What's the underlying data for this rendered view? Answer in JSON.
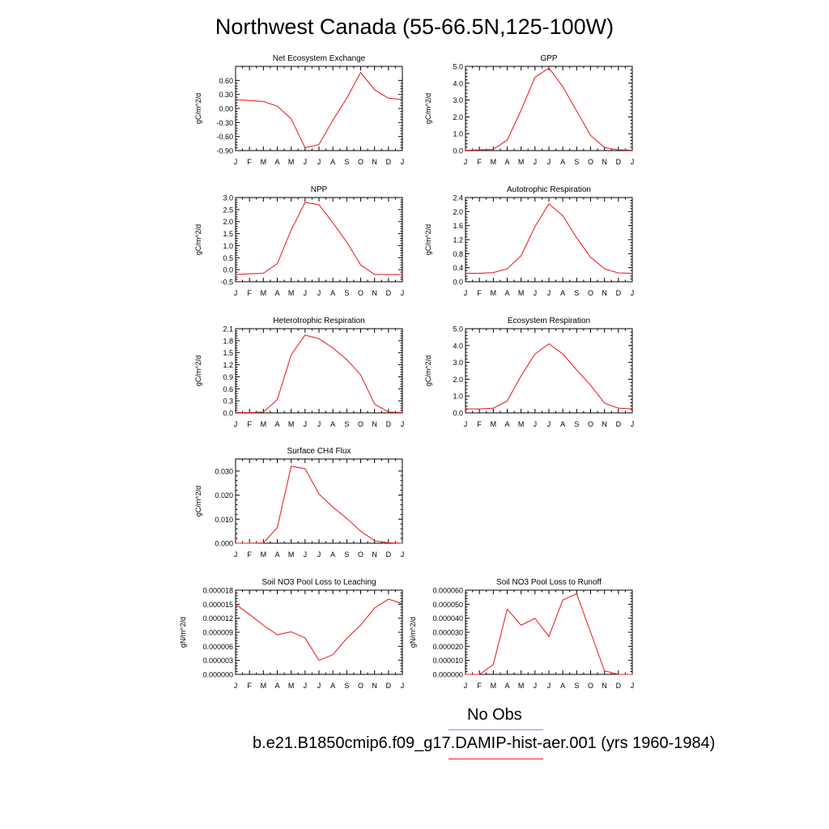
{
  "title": "Northwest Canada (55-66.5N,125-100W)",
  "colors": {
    "model": "#e8262b",
    "obs": "#8d8df0"
  },
  "legend": {
    "obs": "No Obs",
    "model": "b.e21.B1850cmip6.f09_g17.DAMIP-hist-aer.001 (yrs 1960-1984)"
  },
  "chart_data": [
    {
      "type": "line",
      "title": "Net Ecosystem Exchange",
      "ylabel": "gC/m^2/d",
      "x": [
        "J",
        "F",
        "M",
        "A",
        "M",
        "J",
        "J",
        "A",
        "S",
        "O",
        "N",
        "D",
        "J"
      ],
      "ylim": [
        -0.9,
        0.9
      ],
      "yticks": [
        -0.9,
        -0.6,
        -0.3,
        0.0,
        0.3,
        0.6
      ],
      "ytick_labels": [
        "-0.90",
        "-0.60",
        "-0.30",
        "0.00",
        "0.30",
        "0.60"
      ],
      "series": [
        {
          "values": [
            0.19,
            0.17,
            0.15,
            0.05,
            -0.22,
            -0.84,
            -0.77,
            -0.25,
            0.22,
            0.77,
            0.4,
            0.22,
            0.19
          ]
        }
      ]
    },
    {
      "type": "line",
      "title": "GPP",
      "ylabel": "gC/m^2/d",
      "x": [
        "J",
        "F",
        "M",
        "A",
        "M",
        "J",
        "J",
        "A",
        "S",
        "O",
        "N",
        "D",
        "J"
      ],
      "ylim": [
        0,
        5
      ],
      "yticks": [
        0,
        1,
        2,
        3,
        4,
        5
      ],
      "ytick_labels": [
        "0.0",
        "1.0",
        "2.0",
        "3.0",
        "4.0",
        "5.0"
      ],
      "series": [
        {
          "values": [
            0.02,
            0.04,
            0.07,
            0.62,
            2.4,
            4.35,
            4.9,
            3.8,
            2.35,
            0.9,
            0.18,
            0.05,
            0.02
          ]
        }
      ]
    },
    {
      "type": "line",
      "title": "NPP",
      "ylabel": "gC/m^2/d",
      "x": [
        "J",
        "F",
        "M",
        "A",
        "M",
        "J",
        "J",
        "A",
        "S",
        "O",
        "N",
        "D",
        "J"
      ],
      "ylim": [
        -0.5,
        3
      ],
      "yticks": [
        -0.5,
        0,
        0.5,
        1,
        1.5,
        2,
        2.5,
        3
      ],
      "ytick_labels": [
        "-0.5",
        "0.0",
        "0.5",
        "1.0",
        "1.5",
        "2.0",
        "2.5",
        "3.0"
      ],
      "series": [
        {
          "values": [
            -0.2,
            -0.17,
            -0.15,
            0.25,
            1.65,
            2.8,
            2.7,
            1.95,
            1.15,
            0.2,
            -0.2,
            -0.2,
            -0.2
          ]
        }
      ]
    },
    {
      "type": "line",
      "title": "Autotrophic Respiration",
      "ylabel": "gC/m^2/d",
      "x": [
        "J",
        "F",
        "M",
        "A",
        "M",
        "J",
        "J",
        "A",
        "S",
        "O",
        "N",
        "D",
        "J"
      ],
      "ylim": [
        0,
        2.4
      ],
      "yticks": [
        0,
        0.4,
        0.8,
        1.2,
        1.6,
        2.0,
        2.4
      ],
      "ytick_labels": [
        "0.0",
        "0.4",
        "0.8",
        "1.2",
        "1.6",
        "2.0",
        "2.4"
      ],
      "series": [
        {
          "values": [
            0.24,
            0.24,
            0.26,
            0.37,
            0.74,
            1.57,
            2.22,
            1.88,
            1.25,
            0.7,
            0.37,
            0.25,
            0.24
          ]
        }
      ]
    },
    {
      "type": "line",
      "title": "Heterotrophic Respiration",
      "ylabel": "gC/m^2/d",
      "x": [
        "J",
        "F",
        "M",
        "A",
        "M",
        "J",
        "J",
        "A",
        "S",
        "O",
        "N",
        "D",
        "J"
      ],
      "ylim": [
        0,
        2.1
      ],
      "yticks": [
        0,
        0.3,
        0.6,
        0.9,
        1.2,
        1.5,
        1.8,
        2.1
      ],
      "ytick_labels": [
        "0.0",
        "0.3",
        "0.6",
        "0.9",
        "1.2",
        "1.5",
        "1.8",
        "2.1"
      ],
      "series": [
        {
          "values": [
            0.01,
            0.01,
            0.02,
            0.33,
            1.45,
            1.94,
            1.85,
            1.62,
            1.33,
            0.95,
            0.22,
            0.02,
            0.01
          ]
        }
      ]
    },
    {
      "type": "line",
      "title": "Ecosystem Respiration",
      "ylabel": "gC/m^2/d",
      "x": [
        "J",
        "F",
        "M",
        "A",
        "M",
        "J",
        "J",
        "A",
        "S",
        "O",
        "N",
        "D",
        "J"
      ],
      "ylim": [
        0,
        5
      ],
      "yticks": [
        0,
        1,
        2,
        3,
        4,
        5
      ],
      "ytick_labels": [
        "0.0",
        "1.0",
        "2.0",
        "3.0",
        "4.0",
        "5.0"
      ],
      "series": [
        {
          "values": [
            0.24,
            0.23,
            0.28,
            0.7,
            2.2,
            3.5,
            4.1,
            3.5,
            2.55,
            1.65,
            0.58,
            0.28,
            0.24
          ]
        }
      ]
    },
    {
      "type": "line",
      "title": "Surface CH4 Flux",
      "ylabel": "gC/m^2/d",
      "x": [
        "J",
        "F",
        "M",
        "A",
        "M",
        "J",
        "J",
        "A",
        "S",
        "O",
        "N",
        "D",
        "J"
      ],
      "ylim": [
        0,
        0.035
      ],
      "yticks": [
        0,
        0.01,
        0.02,
        0.03
      ],
      "ytick_labels": [
        "0.000",
        "0.010",
        "0.020",
        "0.030"
      ],
      "series": [
        {
          "values": [
            0.0,
            0.0,
            0.0001,
            0.0065,
            0.032,
            0.031,
            0.0205,
            0.015,
            0.0103,
            0.005,
            0.001,
            0.0002,
            0.0
          ]
        }
      ]
    },
    {
      "type": "line",
      "title": "Soil NO3 Pool Loss to Leaching",
      "ylabel": "gN/m^2/d",
      "x": [
        "J",
        "F",
        "M",
        "A",
        "M",
        "J",
        "J",
        "A",
        "S",
        "O",
        "N",
        "D",
        "J"
      ],
      "ylim": [
        0,
        1.8e-05
      ],
      "yticks": [
        0,
        3e-06,
        6e-06,
        9e-06,
        1.2e-05,
        1.5e-05,
        1.8e-05
      ],
      "ytick_labels": [
        "0.000000",
        "0.000003",
        "0.000006",
        "0.000009",
        "0.000012",
        "0.000015",
        "0.000018"
      ],
      "series": [
        {
          "values": [
            1.5e-05,
            1.28e-05,
            1.05e-05,
            8.5e-06,
            9.1e-06,
            7.8e-06,
            3e-06,
            4.2e-06,
            7.7e-06,
            1.05e-05,
            1.42e-05,
            1.61e-05,
            1.51e-05
          ]
        }
      ]
    },
    {
      "type": "line",
      "title": "Soil NO3 Pool Loss to Runoff",
      "ylabel": "gN/m^2/d",
      "x": [
        "J",
        "F",
        "M",
        "A",
        "M",
        "J",
        "J",
        "A",
        "S",
        "O",
        "N",
        "D",
        "J"
      ],
      "ylim": [
        0,
        6e-05
      ],
      "yticks": [
        0,
        1e-05,
        2e-05,
        3e-05,
        4e-05,
        5e-05,
        6e-05
      ],
      "ytick_labels": [
        "0.000000",
        "0.000010",
        "0.000020",
        "0.000030",
        "0.000040",
        "0.000050",
        "0.000060"
      ],
      "series": [
        {
          "values": [
            0.0,
            0.0,
            7e-06,
            4.65e-05,
            3.5e-05,
            4e-05,
            2.7e-05,
            5.3e-05,
            5.75e-05,
            3e-05,
            2.5e-06,
            0.0,
            0.0
          ]
        }
      ]
    }
  ]
}
